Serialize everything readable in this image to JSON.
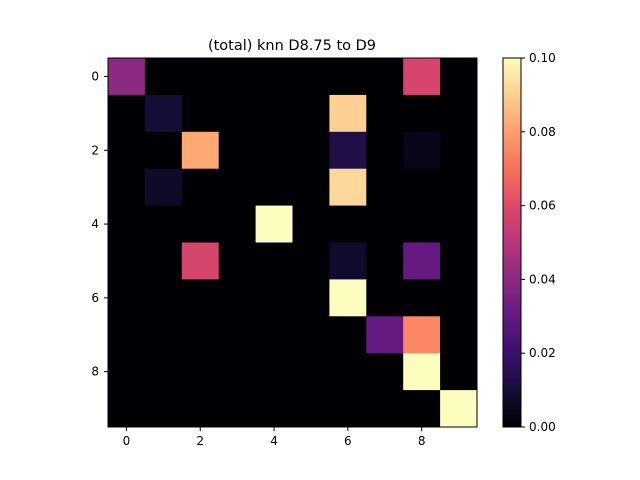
{
  "chart_data": {
    "type": "heatmap",
    "title": "(total) knn D8.75 to D9",
    "xlabel": "",
    "ylabel": "",
    "rows": 10,
    "cols": 10,
    "x_ticks": [
      0,
      2,
      4,
      6,
      8
    ],
    "y_ticks": [
      0,
      2,
      4,
      6,
      8
    ],
    "x_tick_labels": [
      "0",
      "2",
      "4",
      "6",
      "8"
    ],
    "y_tick_labels": [
      "0",
      "2",
      "4",
      "6",
      "8"
    ],
    "colormap": "magma",
    "vmin": 0.0,
    "vmax": 0.1,
    "colorbar_ticks": [
      0.0,
      0.02,
      0.04,
      0.06,
      0.08,
      0.1
    ],
    "colorbar_tick_labels": [
      "0.00",
      "0.02",
      "0.04",
      "0.06",
      "0.08",
      "0.10"
    ],
    "values": [
      [
        0.04,
        0,
        0,
        0,
        0,
        0,
        0,
        0,
        0.058,
        0
      ],
      [
        0,
        0.01,
        0,
        0,
        0,
        0,
        0.09,
        0,
        0,
        0
      ],
      [
        0,
        0,
        0.082,
        0,
        0,
        0,
        0.013,
        0,
        0.004,
        0
      ],
      [
        0,
        0.007,
        0,
        0,
        0,
        0,
        0.092,
        0,
        0,
        0
      ],
      [
        0,
        0,
        0,
        0,
        0.1,
        0,
        0,
        0,
        0,
        0
      ],
      [
        0,
        0,
        0.058,
        0,
        0,
        0,
        0.008,
        0,
        0.03,
        0
      ],
      [
        0,
        0,
        0,
        0,
        0,
        0,
        0.1,
        0,
        0,
        0
      ],
      [
        0,
        0,
        0,
        0,
        0,
        0,
        0,
        0.03,
        0.075,
        0
      ],
      [
        0,
        0,
        0,
        0,
        0,
        0,
        0,
        0,
        0.1,
        0
      ],
      [
        0,
        0,
        0,
        0,
        0,
        0,
        0,
        0,
        0,
        0.1
      ]
    ]
  }
}
